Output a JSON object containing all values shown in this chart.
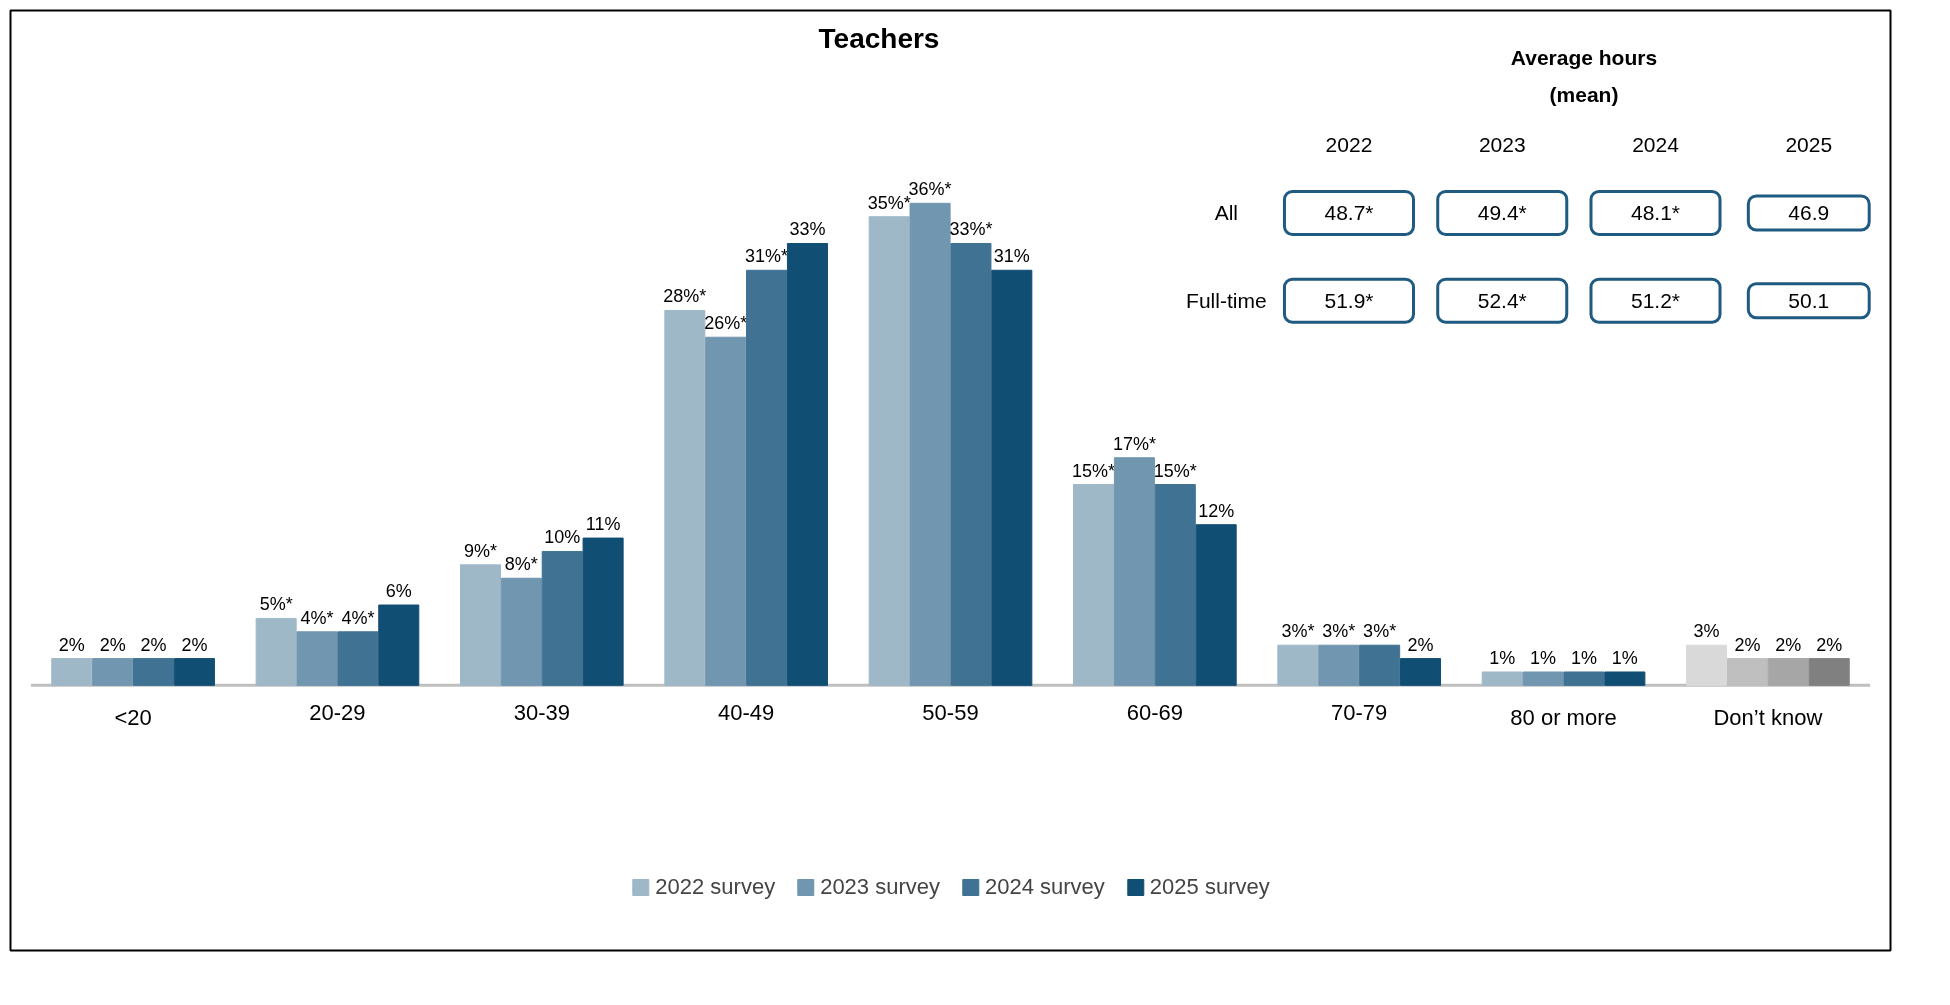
{
  "chart_data": {
    "type": "bar",
    "title": "Teachers",
    "categories": [
      "<20",
      "20-29",
      "30-39",
      "40-49",
      "50-59",
      "60-69",
      "70-79",
      "80 or more",
      "Don’t know"
    ],
    "series": [
      {
        "name": "2022 survey",
        "color": "#9fb8c8",
        "colors": [
          "#9fb8c8",
          "#9fb8c8",
          "#9fb8c8",
          "#9fb8c8",
          "#9fb8c8",
          "#9fb8c8",
          "#9fb8c8",
          "#9fb8c8",
          "#d9d9d9"
        ],
        "values": [
          2,
          5,
          9,
          28,
          35,
          15,
          3,
          1,
          3
        ],
        "value_labels": [
          "2%",
          "5%*",
          "9%*",
          "28%*",
          "35%*",
          "15%*",
          "3%*",
          "1%",
          "3%"
        ]
      },
      {
        "name": "2023 survey",
        "color": "#7196af",
        "colors": [
          "#7196af",
          "#7196af",
          "#7196af",
          "#7196af",
          "#7196af",
          "#7196af",
          "#7196af",
          "#7196af",
          "#bfbfbf"
        ],
        "values": [
          2,
          4,
          8,
          26,
          36,
          17,
          3,
          1,
          2
        ],
        "value_labels": [
          "2%",
          "4%*",
          "8%*",
          "26%*",
          "36%*",
          "17%*",
          "3%*",
          "1%",
          "2%"
        ]
      },
      {
        "name": "2024 survey",
        "color": "#3f7293",
        "colors": [
          "#3f7293",
          "#3f7293",
          "#3f7293",
          "#3f7293",
          "#3f7293",
          "#3f7293",
          "#3f7293",
          "#3f7293",
          "#a6a6a6"
        ],
        "values": [
          2,
          4,
          10,
          31,
          33,
          15,
          3,
          1,
          2
        ],
        "value_labels": [
          "2%",
          "4%*",
          "10%",
          "31%*",
          "33%*",
          "15%*",
          "3%*",
          "1%",
          "2%"
        ]
      },
      {
        "name": "2025 survey",
        "color": "#114e74",
        "colors": [
          "#114e74",
          "#114e74",
          "#114e74",
          "#114e74",
          "#114e74",
          "#114e74",
          "#114e74",
          "#114e74",
          "#808080"
        ],
        "values": [
          2,
          6,
          11,
          33,
          31,
          12,
          2,
          1,
          2
        ],
        "value_labels": [
          "2%",
          "6%",
          "11%",
          "33%",
          "31%",
          "12%",
          "2%",
          "1%",
          "2%"
        ]
      }
    ],
    "annotations": [
      "Average hours\n(mean)",
      "2022",
      "2023",
      "2024",
      "2025",
      "All",
      "48.7*",
      "49.4*",
      "48.1*",
      "46.9",
      "Full-time",
      "51.9*",
      "52.4*",
      "51.2*",
      "50.1"
    ],
    "legend": "bottom",
    "grid": false
  }
}
